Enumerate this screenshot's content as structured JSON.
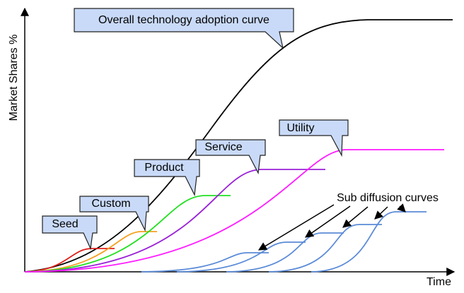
{
  "axes": {
    "y_label": "Market Shares %",
    "x_label": "Time"
  },
  "callouts": [
    "Overall technology adoption curve",
    "Utility",
    "Service",
    "Product",
    "Custom",
    "Seed"
  ],
  "annotation": "Sub diffusion curves"
}
